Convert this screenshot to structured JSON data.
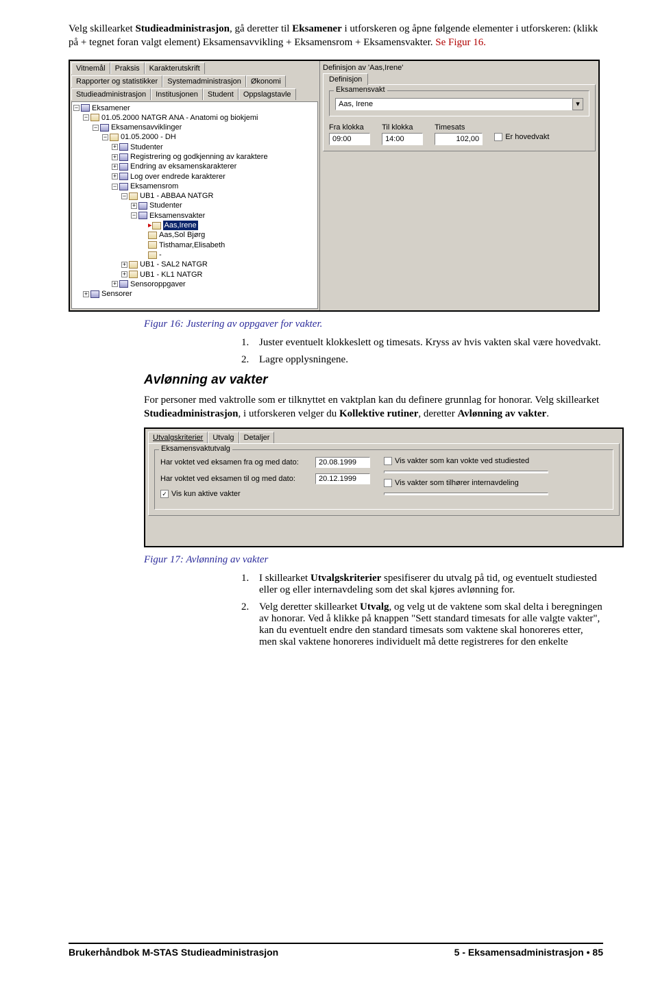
{
  "intro": {
    "part1": "Velg skillearket ",
    "b1": "Studieadministrasjon",
    "part2": ", gå deretter til ",
    "b2": "Eksamener",
    "part3": " i utforskeren og åpne følgende elementer i utforskeren: (klikk på + tegnet foran valgt element) Eksamensavvikling + Eksamensrom + Eksamensvakter. ",
    "red": "Se Figur 16."
  },
  "shot1": {
    "tabs_row1": [
      "Vitnemål",
      "Praksis",
      "Karakterutskrift"
    ],
    "tabs_row2": [
      "Rapporter og statistikker",
      "Systemadministrasjon",
      "Økonomi"
    ],
    "tabs_row3": [
      "Studieadministrasjon",
      "Institusjonen",
      "Student",
      "Oppslagstavle"
    ],
    "tree": [
      {
        "ind": 0,
        "exp": "−",
        "ico": "node",
        "txt": "Eksamener"
      },
      {
        "ind": 1,
        "exp": "−",
        "ico": "card",
        "txt": "01.05.2000  NATGR ANA - Anatomi og biokjemi"
      },
      {
        "ind": 2,
        "exp": "−",
        "ico": "node",
        "txt": "Eksamensavviklinger"
      },
      {
        "ind": 3,
        "exp": "−",
        "ico": "card",
        "txt": "01.05.2000 - DH"
      },
      {
        "ind": 4,
        "exp": "+",
        "ico": "node",
        "txt": "Studenter"
      },
      {
        "ind": 4,
        "exp": "+",
        "ico": "node",
        "txt": "Registrering og godkjenning av karaktere"
      },
      {
        "ind": 4,
        "exp": "+",
        "ico": "node",
        "txt": "Endring av eksamenskarakterer"
      },
      {
        "ind": 4,
        "exp": "+",
        "ico": "node",
        "txt": "Log over endrede karakterer"
      },
      {
        "ind": 4,
        "exp": "−",
        "ico": "node",
        "txt": "Eksamensrom"
      },
      {
        "ind": 5,
        "exp": "−",
        "ico": "card",
        "txt": "UB1 - ABBAA NATGR"
      },
      {
        "ind": 6,
        "exp": "+",
        "ico": "node",
        "txt": "Studenter"
      },
      {
        "ind": 6,
        "exp": "−",
        "ico": "node",
        "txt": "Eksamensvakter"
      },
      {
        "ind": 7,
        "exp": "",
        "ico": "card",
        "txt": "Aas,Irene",
        "sel": true,
        "arrow": true
      },
      {
        "ind": 7,
        "exp": "",
        "ico": "card",
        "txt": "Aas,Sol Bjørg"
      },
      {
        "ind": 7,
        "exp": "",
        "ico": "card",
        "txt": "Tisthamar,Elisabeth"
      },
      {
        "ind": 7,
        "exp": "",
        "ico": "card",
        "txt": " - "
      },
      {
        "ind": 5,
        "exp": "+",
        "ico": "card",
        "txt": "UB1 - SAL2 NATGR"
      },
      {
        "ind": 5,
        "exp": "+",
        "ico": "card",
        "txt": "UB1 - KL1 NATGR"
      },
      {
        "ind": 4,
        "exp": "+",
        "ico": "node",
        "txt": "Sensoroppgaver"
      },
      {
        "ind": 1,
        "exp": "+",
        "ico": "node",
        "txt": "Sensorer"
      }
    ],
    "right_title": "Definisjon av 'Aas,Irene'",
    "right_tab": "Definisjon",
    "group_label": "Eksamensvakt",
    "vakt_value": "Aas, Irene",
    "fra_label": "Fra klokka",
    "fra_value": "09:00",
    "til_label": "Til klokka",
    "til_value": "14:00",
    "ts_label": "Timesats",
    "ts_value": "102,00",
    "hoved_label": "Er hovedvakt"
  },
  "caption1": "Figur 16: Justering av oppgaver for vakter.",
  "step1": "Juster eventuelt klokkeslett og timesats. Kryss av hvis vakten skal være hovedvakt.",
  "step2": "Lagre opplysningene.",
  "h3": "Avlønning av vakter",
  "para2a": "For personer med vaktrolle som er tilknyttet en vaktplan kan du definere grunnlag for honorar. Velg skillearket ",
  "para2b": "Studieadministrasjon",
  "para2c": ", i utforskeren velger du ",
  "para2d": "Kollektive rutiner",
  "para2e": ", deretter ",
  "para2f": "Avlønning av vakter",
  "para2g": ".",
  "shot2": {
    "tabs": [
      "Utvalgskriterier",
      "Utvalg",
      "Detaljer"
    ],
    "group_label": "Eksamensvaktutvalg",
    "row1_label": "Har voktet ved eksamen fra og med dato:",
    "row1_value": "20.08.1999",
    "row2_label": "Har voktet ved eksamen til og med dato:",
    "row2_value": "20.12.1999",
    "cb_kun": "Vis kun aktive vakter",
    "cb_studiested": "Vis vakter som kan vokte ved studiested",
    "cb_internavd": "Vis vakter som tilhører internavdeling"
  },
  "caption2": "Figur 17: Avlønning av vakter",
  "out_step1a": "I skillearket ",
  "out_step1b": "Utvalgskriterier",
  "out_step1c": " spesifiserer du utvalg på tid, og eventuelt studiested eller og eller internavdeling som det skal kjøres avlønning for.",
  "out_step2a": "Velg deretter skillearket ",
  "out_step2b": "Utvalg",
  "out_step2c": ", og velg ut de vaktene som skal delta i beregningen av honorar. Ved å klikke på knappen \"Sett standard timesats for alle valgte vakter\", kan du eventuelt endre den standard timesats som vaktene skal honoreres etter, men skal vaktene honoreres individuelt må dette registreres for den enkelte",
  "footer_left": "Brukerhåndbok M-STAS Studieadministrasjon",
  "footer_right_a": "5 - Eksamensadministrasjon ",
  "footer_right_b": " 85"
}
